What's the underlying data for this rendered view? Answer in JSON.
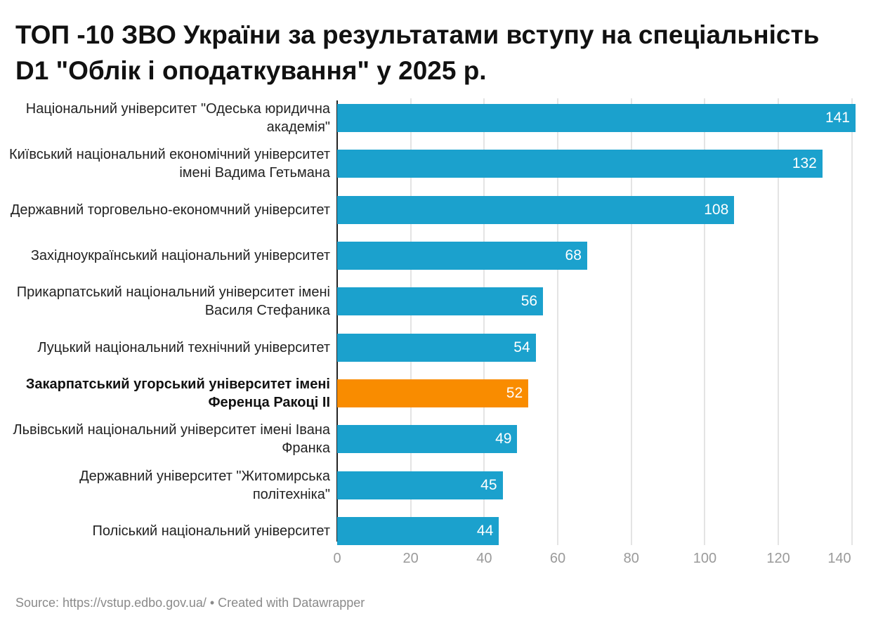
{
  "title": "ТОП -10 ЗВО України за результатами вступу на спеціальність D1 \"Облік і оподаткування\" у 2025 р.",
  "chart_data": {
    "type": "bar",
    "orientation": "horizontal",
    "title": "ТОП -10 ЗВО України за результатами вступу на спеціальність D1 \"Облік і оподаткування\" у 2025 р.",
    "categories": [
      "Національний університет \"Одеська юридична академія\"",
      "Київський національний економічний університет імені Вадима Гетьмана",
      "Державний торговельно-економчний університет",
      "Західноукраїнський національний університет",
      "Прикарпатський національний університет імені Василя Стефаника",
      "Луцький національний технічний університет",
      "Закарпатський угорський університет імені Ференца Ракоці II",
      "Львівський національний університет імені Івана Франка",
      "Державний університет \"Житомирська політехніка\"",
      "Поліський національний університет"
    ],
    "values": [
      141,
      132,
      108,
      68,
      56,
      54,
      52,
      49,
      45,
      44
    ],
    "highlight_index": 6,
    "colors": {
      "default": "#1ba1cd",
      "highlight": "#f98c00"
    },
    "xlim": [
      0,
      141
    ],
    "xticks": [
      "0",
      "20",
      "40",
      "60",
      "80",
      "100",
      "120",
      "140"
    ],
    "xtick_values": [
      0,
      20,
      40,
      60,
      80,
      100,
      120,
      140
    ],
    "grid": true,
    "xlabel": "",
    "ylabel": ""
  },
  "source": "Source: https://vstup.edbo.gov.ua/ • Created with Datawrapper"
}
